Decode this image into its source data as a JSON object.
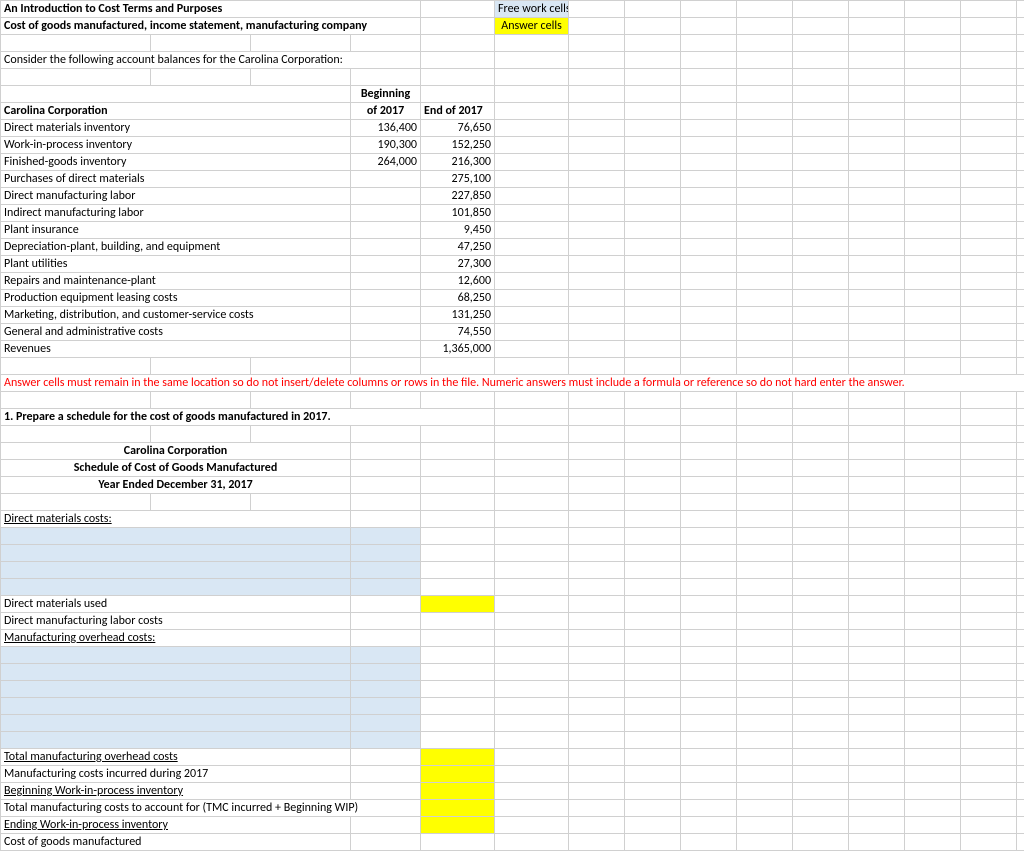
{
  "headers": {
    "title1": "An Introduction to Cost Terms and Purposes",
    "title2": "Cost of goods manufactured, income statement, manufacturing company",
    "legend_free": "Free work cells",
    "legend_answer": "Answer cells",
    "intro": "Consider the following account balances for the Carolina Corporation:"
  },
  "table": {
    "corp": "Carolina Corporation",
    "col_begin": "Beginning of 2017",
    "col_end": "End of 2017",
    "rows": [
      {
        "label": "Direct materials inventory",
        "begin": "136,400",
        "end": "76,650"
      },
      {
        "label": "Work-in-process inventory",
        "begin": "190,300",
        "end": "152,250"
      },
      {
        "label": "Finished-goods inventory",
        "begin": "264,000",
        "end": "216,300"
      },
      {
        "label": "Purchases of direct materials",
        "begin": "",
        "end": "275,100"
      },
      {
        "label": "Direct manufacturing labor",
        "begin": "",
        "end": "227,850"
      },
      {
        "label": "Indirect manufacturing labor",
        "begin": "",
        "end": "101,850"
      },
      {
        "label": "Plant insurance",
        "begin": "",
        "end": "9,450"
      },
      {
        "label": "Depreciation-plant, building, and equipment",
        "begin": "",
        "end": "47,250"
      },
      {
        "label": "Plant utilities",
        "begin": "",
        "end": "27,300"
      },
      {
        "label": "Repairs and maintenance-plant",
        "begin": "",
        "end": "12,600"
      },
      {
        "label": "Production equipment leasing costs",
        "begin": "",
        "end": "68,250"
      },
      {
        "label": "Marketing, distribution, and customer-service costs",
        "begin": "",
        "end": "131,250"
      },
      {
        "label": "General and administrative costs",
        "begin": "",
        "end": "74,550"
      },
      {
        "label": "Revenues",
        "begin": "",
        "end": "1,365,000"
      }
    ]
  },
  "note": "Answer cells must remain in the same location so do not insert/delete columns or rows in the file. Numeric answers must include a formula or reference so do not hard enter the answer.",
  "q1": "1. Prepare a schedule for the cost of goods manufactured in 2017.",
  "schedule": {
    "corp": "Carolina Corporation",
    "title": "Schedule of Cost of Goods Manufactured",
    "period": "Year Ended December 31, 2017",
    "dm_header": "Direct materials costs:",
    "dm_used": "Direct materials used",
    "dml": "Direct manufacturing labor costs",
    "moh_header": "Manufacturing overhead costs:",
    "tmoh": "Total manufacturing overhead costs",
    "mc_incurred": "Manufacturing costs incurred during 2017",
    "begin_wip": "Beginning Work-in-process inventory",
    "tmc": "Total manufacturing costs to account for (TMC incurred + Beginning WIP)",
    "end_wip": "Ending Work-in-process inventory",
    "cogm": "Cost of goods manufactured"
  }
}
